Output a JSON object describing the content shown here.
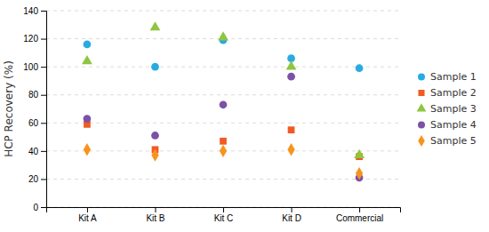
{
  "chart_data": {
    "type": "scatter",
    "categories": [
      "Kit A",
      "Kit B",
      "Kit C",
      "Kit D",
      "Commercial"
    ],
    "series": [
      {
        "name": "Sample 1",
        "color": "#29ABE2",
        "marker": "circle",
        "values": [
          116,
          100,
          119,
          106,
          99
        ]
      },
      {
        "name": "Sample 2",
        "color": "#F15A24",
        "marker": "square",
        "values": [
          59,
          41,
          47,
          55,
          36
        ]
      },
      {
        "name": "Sample 3",
        "color": "#8DC63F",
        "marker": "triangle",
        "values": [
          104,
          128,
          121,
          100,
          37
        ]
      },
      {
        "name": "Sample 4",
        "color": "#7B52A6",
        "marker": "circle",
        "values": [
          63,
          51,
          73,
          93,
          21
        ]
      },
      {
        "name": "Sample 5",
        "color": "#F7941D",
        "marker": "diamond",
        "values": [
          41,
          37,
          40,
          41,
          24
        ]
      }
    ],
    "ylabel": "HCP Recovery (%)",
    "ylim": [
      0,
      140
    ],
    "yticks": [
      0,
      20,
      40,
      60,
      80,
      100,
      120,
      140
    ],
    "grid": true,
    "legend": "right"
  }
}
